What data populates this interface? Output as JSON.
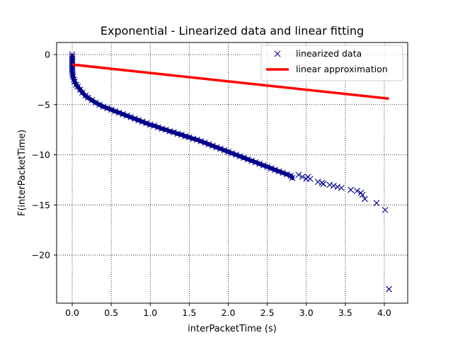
{
  "chart_data": {
    "type": "scatter",
    "title": "Exponential - Linearized data and linear fitting",
    "xlabel": "interPacketTime (s)",
    "ylabel": "F(interPacketTime)",
    "xlim": [
      -0.2,
      4.3
    ],
    "ylim": [
      -24.8,
      1.2
    ],
    "xticks": [
      0.0,
      0.5,
      1.0,
      1.5,
      2.0,
      2.5,
      3.0,
      3.5,
      4.0
    ],
    "xtick_labels": [
      "0.0",
      "0.5",
      "1.0",
      "1.5",
      "2.0",
      "2.5",
      "3.0",
      "3.5",
      "4.0"
    ],
    "yticks": [
      0,
      -5,
      -10,
      -15,
      -20
    ],
    "ytick_labels": [
      "0",
      "−5",
      "−10",
      "−15",
      "−20"
    ],
    "grid": true,
    "grid_style": "dotted",
    "legend_position": "top-right",
    "series": [
      {
        "name": "linearized data",
        "kind": "scatter",
        "marker": "x",
        "color": "#00008b",
        "x": [
          0.0,
          0.0,
          0.0,
          0.0,
          0.0,
          0.0,
          0.0,
          0.0,
          0.0,
          0.0,
          0.005,
          0.01,
          0.02,
          0.03,
          0.05,
          0.07,
          0.1,
          0.13,
          0.17,
          0.2,
          0.25,
          0.3,
          0.35,
          0.4,
          0.45,
          0.5,
          0.55,
          0.6,
          0.65,
          0.7,
          0.75,
          0.8,
          0.85,
          0.9,
          0.95,
          1.0,
          1.05,
          1.1,
          1.15,
          1.2,
          1.25,
          1.3,
          1.35,
          1.4,
          1.45,
          1.5,
          1.55,
          1.6,
          1.65,
          1.7,
          1.75,
          1.8,
          1.85,
          1.9,
          1.95,
          2.0,
          2.05,
          2.1,
          2.15,
          2.2,
          2.25,
          2.3,
          2.35,
          2.4,
          2.45,
          2.5,
          2.55,
          2.6,
          2.65,
          2.7,
          2.75,
          2.8,
          2.82,
          2.9,
          2.95,
          3.0,
          3.02,
          3.05,
          3.15,
          3.2,
          3.22,
          3.3,
          3.35,
          3.4,
          3.45,
          3.57,
          3.65,
          3.7,
          3.72,
          3.75,
          3.9,
          4.01,
          4.06
        ],
        "y": [
          0.0,
          -0.2,
          -0.4,
          -0.6,
          -0.8,
          -1.0,
          -1.2,
          -1.4,
          -1.6,
          -1.8,
          -2.0,
          -2.2,
          -2.5,
          -2.7,
          -3.0,
          -3.2,
          -3.5,
          -3.8,
          -4.1,
          -4.3,
          -4.55,
          -4.8,
          -5.0,
          -5.2,
          -5.35,
          -5.5,
          -5.65,
          -5.8,
          -5.95,
          -6.1,
          -6.25,
          -6.4,
          -6.55,
          -6.7,
          -6.85,
          -7.0,
          -7.1,
          -7.25,
          -7.4,
          -7.5,
          -7.65,
          -7.75,
          -7.9,
          -8.0,
          -8.15,
          -8.25,
          -8.4,
          -8.5,
          -8.65,
          -8.8,
          -8.95,
          -9.1,
          -9.25,
          -9.4,
          -9.55,
          -9.7,
          -9.85,
          -10.0,
          -10.15,
          -10.3,
          -10.45,
          -10.6,
          -10.75,
          -10.9,
          -11.05,
          -11.2,
          -11.35,
          -11.5,
          -11.65,
          -11.8,
          -11.95,
          -12.1,
          -12.3,
          -12.0,
          -12.2,
          -12.4,
          -12.2,
          -12.4,
          -12.7,
          -12.8,
          -12.9,
          -13.0,
          -13.1,
          -13.2,
          -13.3,
          -13.5,
          -13.6,
          -13.8,
          -14.0,
          -14.4,
          -14.8,
          -15.5,
          -23.4
        ]
      },
      {
        "name": "linear approximation",
        "kind": "line",
        "color": "#ff0000",
        "x": [
          0.0,
          4.06
        ],
        "y": [
          -1.0,
          -4.4
        ]
      }
    ]
  }
}
